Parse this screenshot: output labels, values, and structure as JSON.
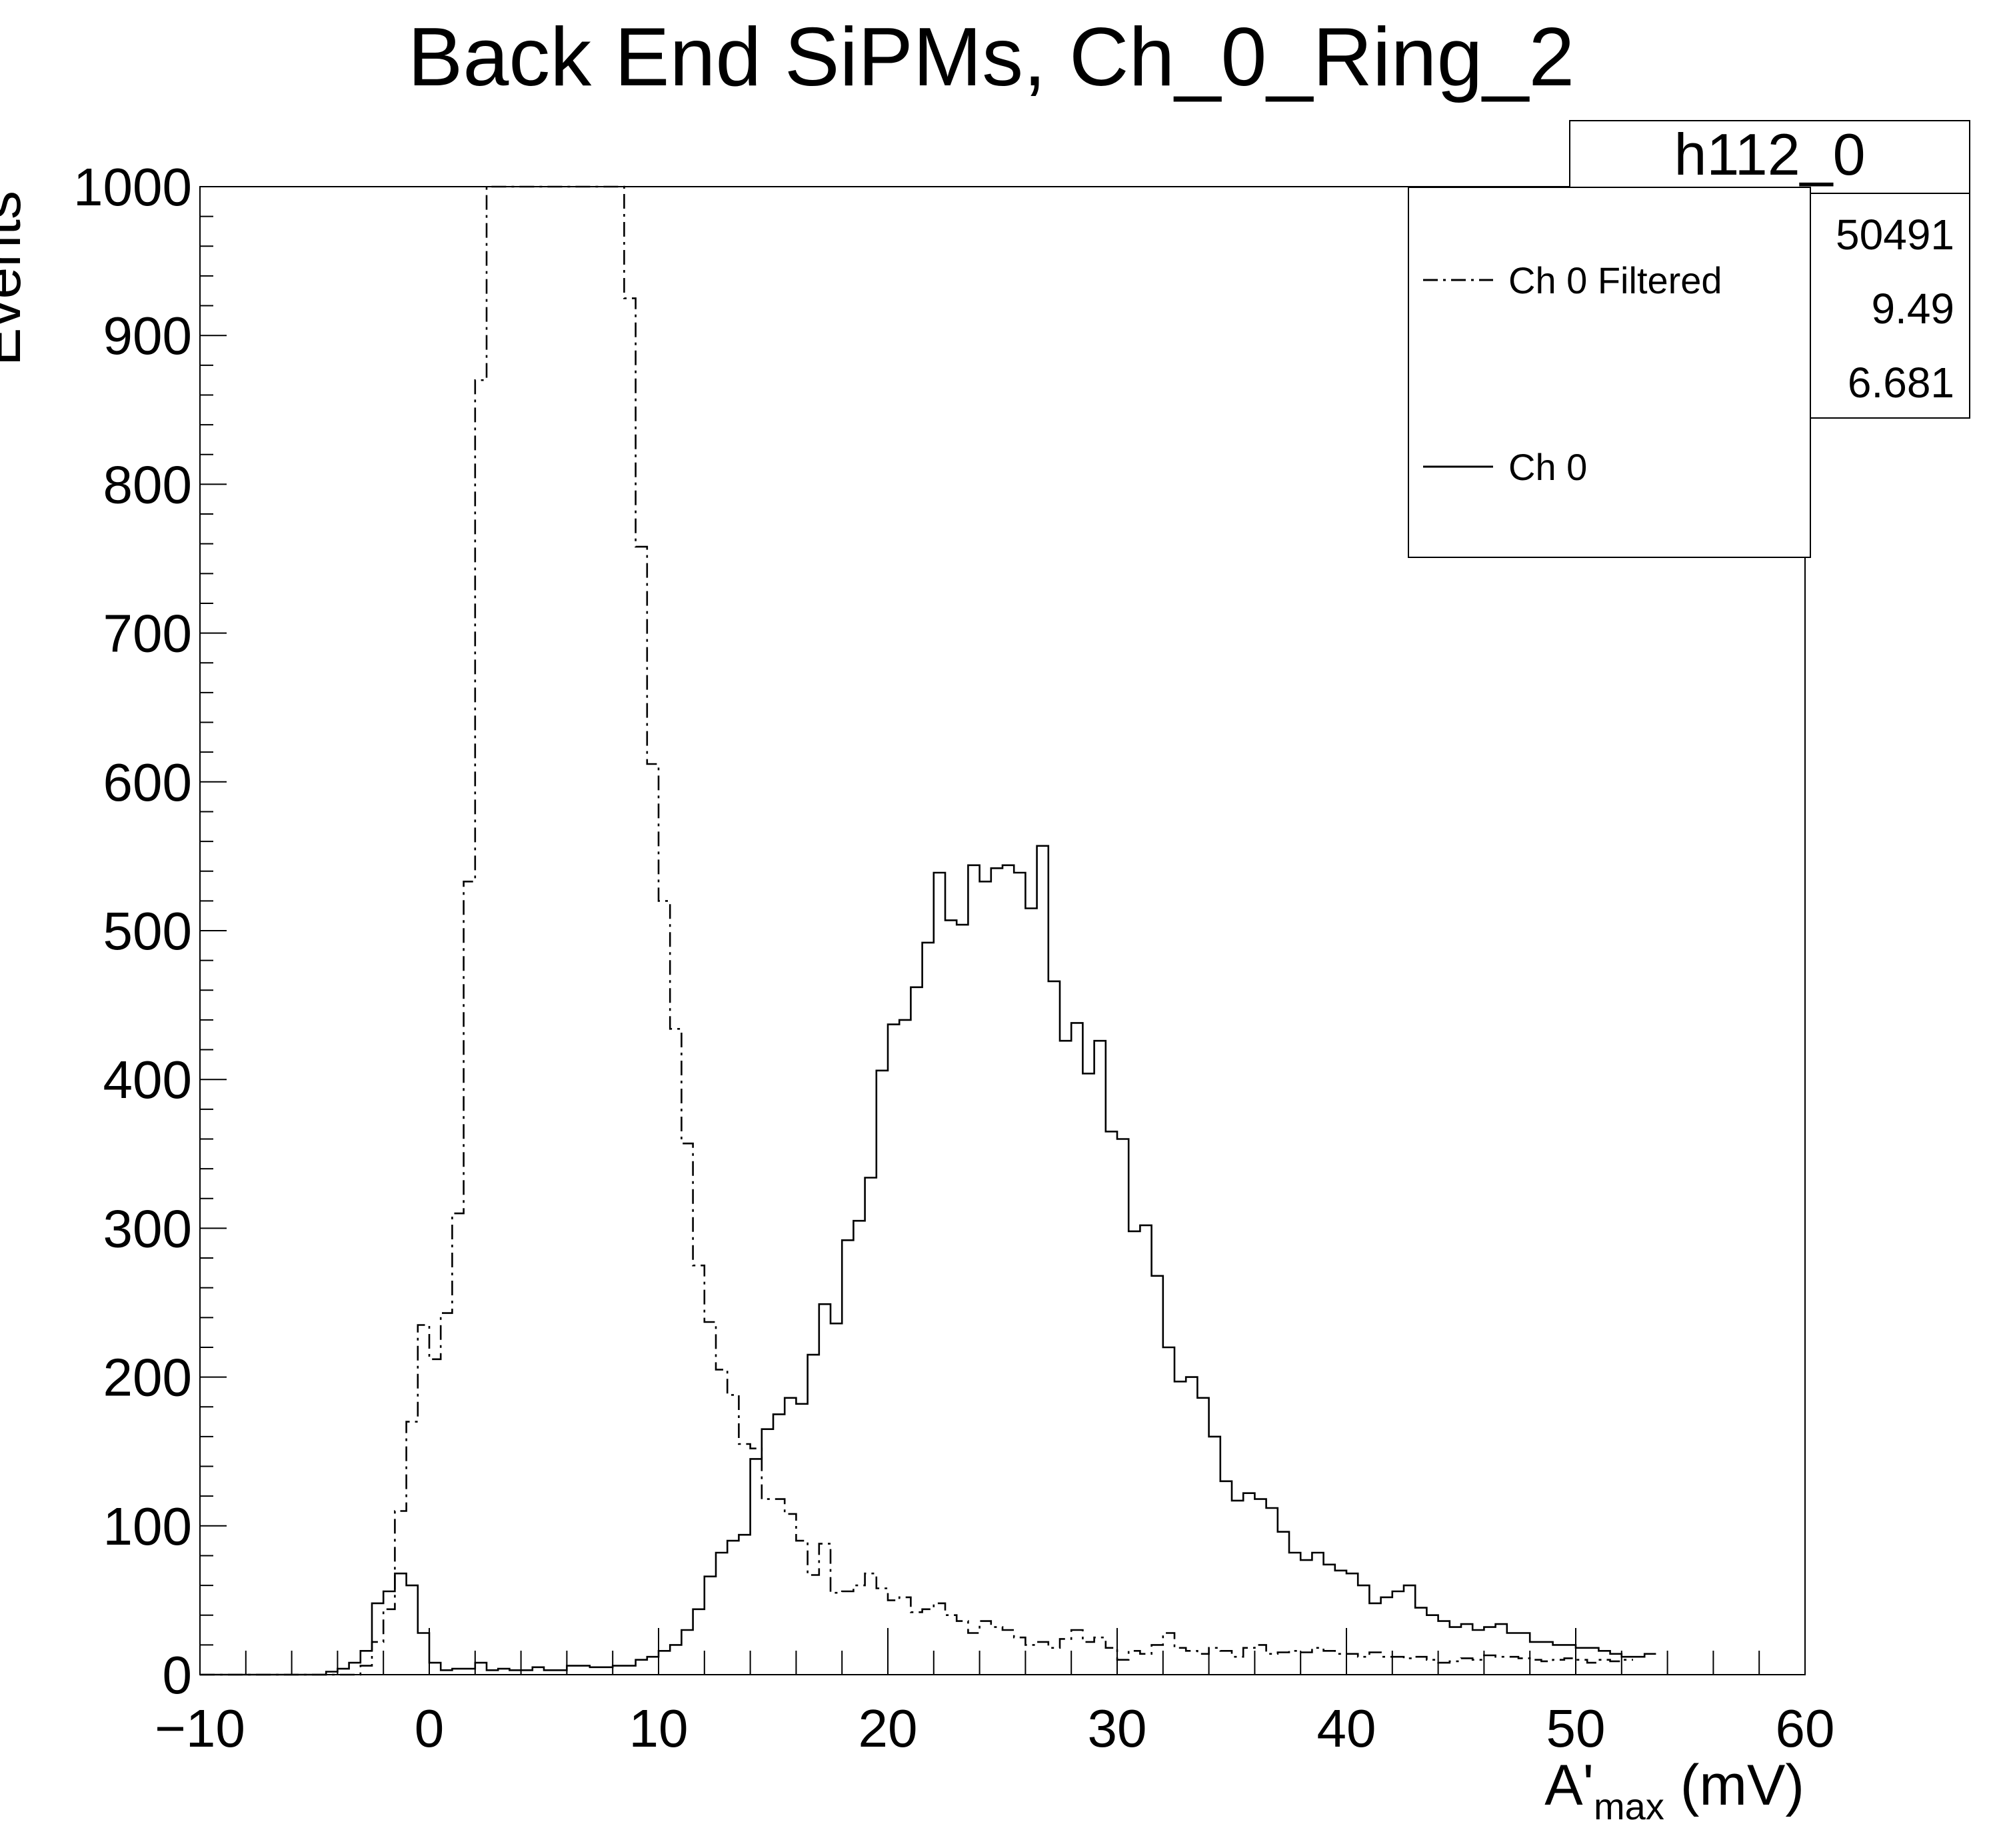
{
  "chart_data": {
    "type": "histogram",
    "title": "Back End SiPMs, Ch_0_Ring_2",
    "xlabel": {
      "main": "A'",
      "subscript": "max",
      "unit": " (mV)"
    },
    "ylabel": "Events",
    "xlim": [
      -10,
      60
    ],
    "ylim": [
      0,
      1000
    ],
    "xticks": [
      -10,
      0,
      10,
      20,
      30,
      40,
      50,
      60
    ],
    "xtick_labels": [
      "−10",
      "0",
      "10",
      "20",
      "30",
      "40",
      "50",
      "60"
    ],
    "yticks": [
      0,
      100,
      200,
      300,
      400,
      500,
      600,
      700,
      800,
      900,
      1000
    ],
    "bin_width": 0.5,
    "stats": {
      "name": "h112_0",
      "values": [
        "50491",
        "9.49",
        "6.681"
      ]
    },
    "legend": {
      "position": "top-right"
    },
    "series": [
      {
        "name": "Ch 0 Filtered",
        "style": "dashdot",
        "start": -3.0,
        "values": [
          6,
          22,
          44,
          110,
          170,
          235,
          212,
          243,
          310,
          533,
          870,
          1000,
          1000,
          1000,
          1000,
          1000,
          1000,
          1000,
          1000,
          1000,
          1000,
          1000,
          1000,
          925,
          758,
          612,
          520,
          434,
          357,
          275,
          237,
          205,
          188,
          155,
          152,
          118,
          118,
          108,
          90,
          67,
          88,
          55,
          56,
          60,
          68,
          58,
          50,
          52,
          42,
          44,
          48,
          40,
          36,
          28,
          36,
          32,
          30,
          25,
          20,
          22,
          18,
          24,
          30,
          22,
          25,
          18,
          10,
          16,
          14,
          20,
          28,
          18,
          16,
          14,
          18,
          16,
          12,
          18,
          20,
          14,
          15,
          16,
          15,
          18,
          16,
          14,
          14,
          12,
          15,
          12,
          12,
          11,
          12,
          10,
          8,
          9,
          11,
          10,
          13,
          12,
          12,
          11,
          10,
          9,
          10,
          11,
          10,
          8,
          10,
          9,
          10
        ]
      },
      {
        "name": "Ch 0",
        "style": "solid",
        "start": -5.5,
        "values": [
          0,
          0,
          2,
          4,
          8,
          16,
          48,
          56,
          68,
          60,
          28,
          8,
          3,
          4,
          4,
          8,
          3,
          4,
          3,
          3,
          5,
          3,
          3,
          6,
          6,
          5,
          5,
          6,
          6,
          10,
          12,
          16,
          20,
          30,
          44,
          66,
          82,
          90,
          94,
          145,
          165,
          175,
          186,
          182,
          215,
          249,
          236,
          292,
          305,
          334,
          406,
          437,
          440,
          462,
          492,
          539,
          507,
          504,
          544,
          533,
          542,
          544,
          539,
          515,
          557,
          466,
          426,
          438,
          404,
          426,
          365,
          360,
          298,
          302,
          268,
          220,
          197,
          200,
          186,
          160,
          130,
          117,
          122,
          118,
          112,
          96,
          82,
          77,
          82,
          74,
          70,
          68,
          60,
          48,
          52,
          56,
          60,
          45,
          40,
          36,
          32,
          34,
          30,
          32,
          34,
          28,
          28,
          22,
          22,
          20,
          20,
          18,
          18,
          16,
          14,
          12,
          12,
          14
        ]
      }
    ]
  }
}
